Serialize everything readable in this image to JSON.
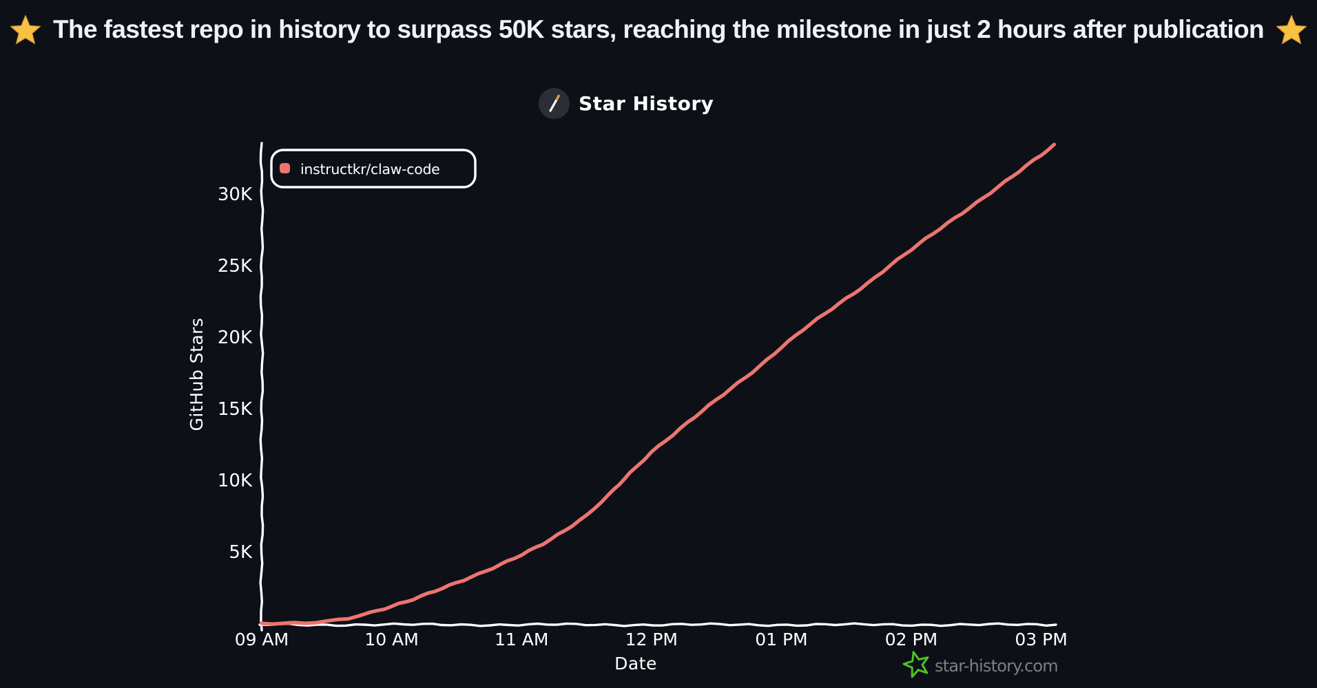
{
  "banner": {
    "text": "The fastest repo in history to surpass 50K stars, reaching the milestone in just 2 hours after publication",
    "star_color": "#f6c244",
    "star_edge_color": "#e09b3d",
    "text_color": "#f0f3f6"
  },
  "header": {
    "title": "Star History",
    "logo_icon": "magic-wand-icon",
    "logo_circle_color": "#2a2f37",
    "wand_color": "#ffffff",
    "wand_tip_color": "#dc9a55"
  },
  "legend": {
    "items": [
      {
        "label": "instructkr/claw-code",
        "color": "#ec7570"
      }
    ],
    "border_color": "#ffffff",
    "fill_color": "#0d1117"
  },
  "watermark": {
    "text": "star-history.com",
    "text_color": "#7d7f82",
    "star_color": "#4ec421"
  },
  "page": {
    "background": "#0d1117",
    "axis_color": "#ffffff",
    "label_color": "#ffffff"
  },
  "chart_data": {
    "type": "line",
    "title": "Star History",
    "xlabel": "Date",
    "ylabel": "GitHub Stars",
    "grid": false,
    "legend_position": "top-left",
    "ylim": [
      0,
      33800
    ],
    "xlim_minutes_after_9am": [
      0,
      370
    ],
    "x_ticks": [
      {
        "label": "09 AM",
        "minutes": 0
      },
      {
        "label": "10 AM",
        "minutes": 60
      },
      {
        "label": "11 AM",
        "minutes": 120
      },
      {
        "label": "12 PM",
        "minutes": 180
      },
      {
        "label": "01 PM",
        "minutes": 240
      },
      {
        "label": "02 PM",
        "minutes": 300
      },
      {
        "label": "03 PM",
        "minutes": 360
      }
    ],
    "y_ticks": [
      {
        "label": "5K",
        "value": 5000
      },
      {
        "label": "10K",
        "value": 10000
      },
      {
        "label": "15K",
        "value": 15000
      },
      {
        "label": "20K",
        "value": 20000
      },
      {
        "label": "25K",
        "value": 25000
      },
      {
        "label": "30K",
        "value": 30000
      }
    ],
    "series": [
      {
        "name": "instructkr/claw-code",
        "color": "#ec7570",
        "minutes_after_9am": [
          0,
          10,
          20,
          30,
          40,
          50,
          60,
          70,
          80,
          90,
          100,
          110,
          120,
          130,
          140,
          150,
          160,
          170,
          180,
          190,
          200,
          210,
          220,
          230,
          240,
          250,
          260,
          270,
          280,
          290,
          300,
          310,
          320,
          330,
          340,
          350,
          360,
          366
        ],
        "stars": [
          0,
          20,
          60,
          150,
          350,
          700,
          1150,
          1700,
          2300,
          2850,
          3400,
          4050,
          4800,
          5600,
          6500,
          7500,
          8900,
          10500,
          12000,
          13200,
          14400,
          15600,
          16800,
          18000,
          19300,
          20500,
          21600,
          22700,
          23800,
          25000,
          26100,
          27200,
          28300,
          29400,
          30500,
          31600,
          32700,
          33400
        ]
      }
    ]
  }
}
